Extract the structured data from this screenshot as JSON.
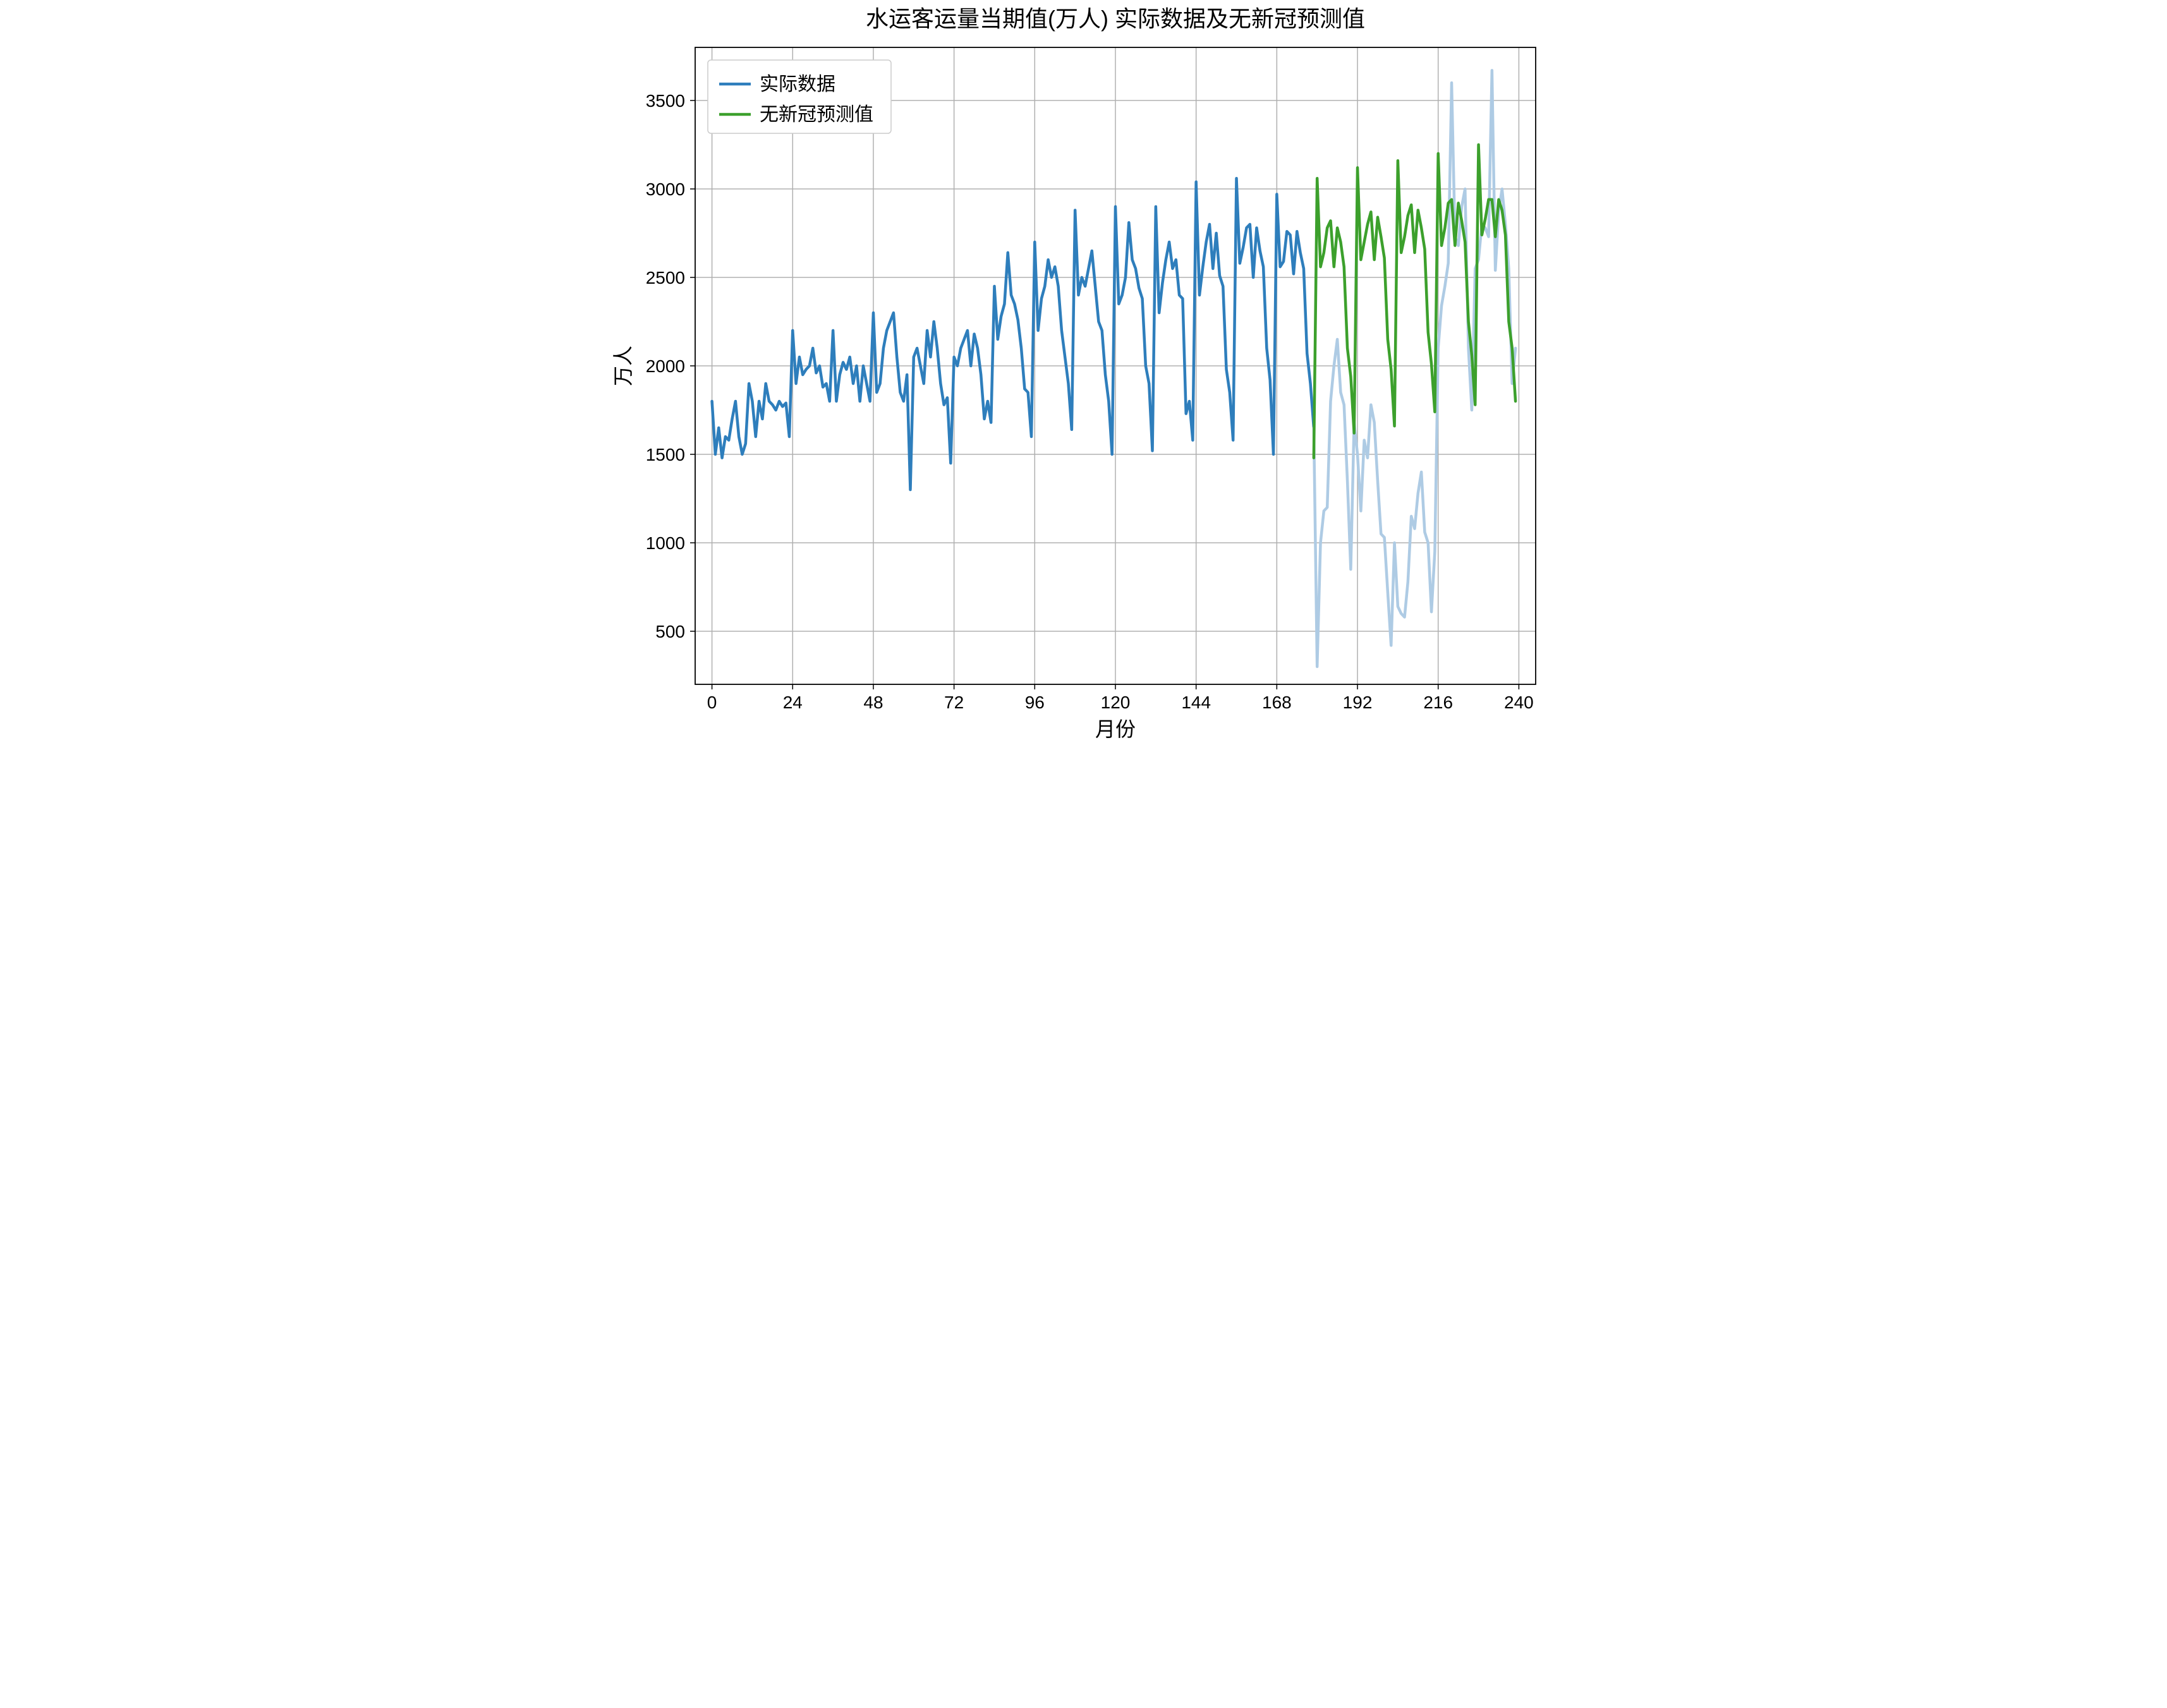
{
  "chart": {
    "type": "line",
    "title": "水运客运量当期值(万人)  实际数据及无新冠预测值",
    "title_fontsize": 36,
    "xlabel": "月份",
    "ylabel": "万人",
    "label_fontsize": 32,
    "tick_fontsize": 28,
    "background_color": "#ffffff",
    "grid_color": "#b0b0b0",
    "axis_color": "#000000",
    "xlim": [
      -5,
      245
    ],
    "ylim": [
      200,
      3800
    ],
    "xticks": [
      0,
      24,
      48,
      72,
      96,
      120,
      144,
      168,
      192,
      216,
      240
    ],
    "yticks": [
      500,
      1000,
      1500,
      2000,
      2500,
      3000,
      3500
    ],
    "line_width": 4.5,
    "legend": {
      "position": "upper-left",
      "items": [
        {
          "label": "实际数据",
          "color": "#2e7ebc"
        },
        {
          "label": "无新冠预测值",
          "color": "#3ca02c"
        }
      ],
      "fontsize": 30,
      "border_color": "#cccccc"
    },
    "series": [
      {
        "name": "actual_pre",
        "color": "#2e7ebc",
        "opacity": 1.0,
        "x_start": 0,
        "values": [
          1800,
          1500,
          1650,
          1480,
          1600,
          1580,
          1700,
          1800,
          1600,
          1500,
          1560,
          1900,
          1800,
          1600,
          1800,
          1700,
          1900,
          1800,
          1780,
          1750,
          1800,
          1770,
          1790,
          1600,
          2200,
          1900,
          2050,
          1950,
          1980,
          2000,
          2100,
          1960,
          2000,
          1880,
          1900,
          1800,
          2200,
          1800,
          1950,
          2020,
          1980,
          2050,
          1900,
          2000,
          1800,
          2000,
          1900,
          1800,
          2300,
          1850,
          1900,
          2100,
          2200,
          2250,
          2300,
          2050,
          1850,
          1800,
          1950,
          1300,
          2050,
          2100,
          2000,
          1900,
          2200,
          2050,
          2250,
          2100,
          1900,
          1780,
          1820,
          1450,
          2050,
          2000,
          2100,
          2150,
          2200,
          2000,
          2180,
          2100,
          1950,
          1700,
          1800,
          1680,
          2450,
          2150,
          2280,
          2350,
          2640,
          2400,
          2350,
          2260,
          2100,
          1870,
          1850,
          1600,
          2700,
          2200,
          2380,
          2450,
          2600,
          2500,
          2560,
          2450,
          2200,
          2050,
          1900,
          1640,
          2880,
          2400,
          2500,
          2450,
          2550,
          2650,
          2450,
          2250,
          2200,
          1950,
          1800,
          1500,
          2900,
          2350,
          2400,
          2500,
          2810,
          2600,
          2550,
          2440,
          2380,
          2000,
          1900,
          1520,
          2900,
          2300,
          2470,
          2600,
          2700,
          2550,
          2600,
          2400,
          2380,
          1730,
          1800,
          1580,
          3040,
          2400,
          2560,
          2700,
          2800,
          2550,
          2750,
          2510,
          2450,
          1980,
          1850,
          1580,
          3060,
          2580,
          2670,
          2780,
          2800,
          2500,
          2780,
          2650,
          2560,
          2100,
          1920,
          1500,
          2970,
          2560,
          2590,
          2760,
          2740,
          2520,
          2760,
          2640,
          2550,
          2070,
          1900,
          1650
        ]
      },
      {
        "name": "actual_post_faded",
        "color": "#aecbe4",
        "opacity": 1.0,
        "x_start": 179,
        "values": [
          1650,
          300,
          1000,
          1180,
          1200,
          1800,
          2000,
          2150,
          1850,
          1780,
          1350,
          850,
          1680,
          1500,
          1180,
          1580,
          1480,
          1780,
          1680,
          1350,
          1050,
          1030,
          720,
          420,
          1000,
          640,
          600,
          580,
          780,
          1150,
          1080,
          1280,
          1400,
          1060,
          1000,
          610,
          950,
          2100,
          2340,
          2450,
          2580,
          3600,
          2730,
          2680,
          2900,
          3000,
          2100,
          1750,
          2550,
          2600,
          2800,
          2780,
          2730,
          3670,
          2540,
          2870,
          3000,
          2800,
          2550,
          1900,
          2100
        ]
      },
      {
        "name": "predicted",
        "color": "#3ca02c",
        "opacity": 1.0,
        "x_start": 179,
        "values": [
          1480,
          3060,
          2560,
          2640,
          2780,
          2820,
          2560,
          2780,
          2700,
          2560,
          2100,
          1940,
          1620,
          3120,
          2600,
          2700,
          2800,
          2870,
          2600,
          2840,
          2730,
          2610,
          2150,
          1980,
          1660,
          3160,
          2640,
          2730,
          2850,
          2910,
          2640,
          2880,
          2780,
          2660,
          2190,
          2010,
          1740,
          3200,
          2680,
          2780,
          2920,
          2940,
          2680,
          2920,
          2820,
          2700,
          2250,
          2060,
          1780,
          3250,
          2740,
          2830,
          2940,
          2940,
          2730,
          2940,
          2880,
          2740,
          2250,
          2100,
          1800
        ]
      }
    ]
  }
}
